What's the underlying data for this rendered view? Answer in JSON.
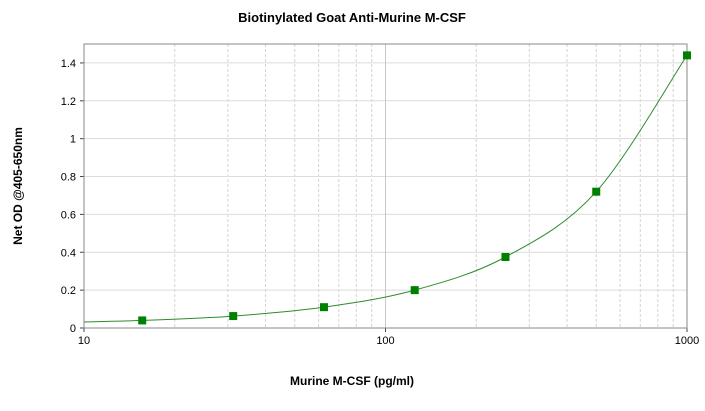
{
  "chart_data": {
    "type": "scatter",
    "title": "Biotinylated Goat Anti-Murine M-CSF",
    "x_label": "Murine M-CSF (pg/ml)",
    "y_label": "Net OD @405-650nm",
    "x": [
      15.6,
      31.25,
      62.5,
      125,
      250,
      500,
      1000
    ],
    "values": [
      0.04,
      0.063,
      0.11,
      0.2,
      0.375,
      0.72,
      1.44
    ],
    "color": "#008000",
    "fit": {
      "x": [
        10,
        15.6,
        31.25,
        62.5,
        125,
        250,
        500,
        1000
      ],
      "values": [
        0.032,
        0.04,
        0.063,
        0.11,
        0.2,
        0.375,
        0.72,
        1.44
      ],
      "color": "#2e8b2e"
    },
    "xlim": [
      10,
      1000
    ],
    "xticks": [
      10,
      100,
      1000
    ],
    "x_log": true,
    "x_minor_ticks": [
      20,
      30,
      40,
      50,
      60,
      70,
      80,
      90,
      200,
      300,
      400,
      500,
      600,
      700,
      800,
      900
    ],
    "ylim": [
      0,
      1.5
    ],
    "yticks": [
      0,
      0.2,
      0.4,
      0.6,
      0.8,
      1,
      1.2,
      1.4
    ],
    "grid": true
  }
}
